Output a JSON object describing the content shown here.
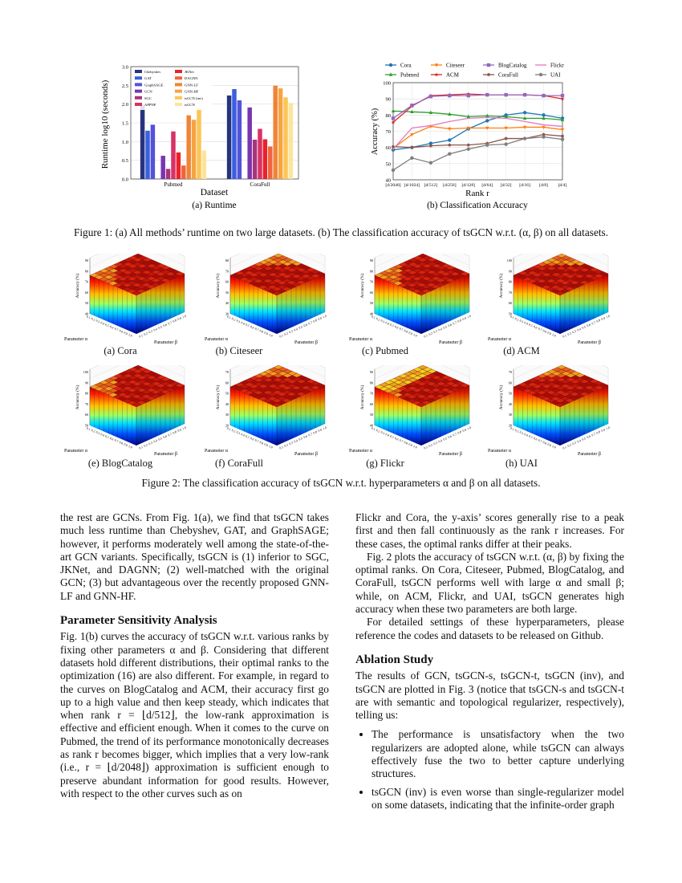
{
  "figure1": {
    "caption": "Figure 1: (a) All methods’ runtime on two large datasets. (b) The classification accuracy of tsGCN w.r.t. (α, β) on all datasets.",
    "runtime_caption": "(a) Runtime",
    "accuracy_caption": "(b) Classification Accuracy"
  },
  "chart_data": [
    {
      "type": "bar",
      "title": "",
      "xlabel": "Dataset",
      "ylabel": "Runtime log10 (seconds)",
      "ylim": [
        0,
        3.0
      ],
      "yticks": [
        "0.0",
        "0.5",
        "1.0",
        "1.5",
        "2.0",
        "2.5",
        "3.0"
      ],
      "categories": [
        "Pubmed",
        "CoraFull"
      ],
      "legend": "top-left",
      "grid": true,
      "series": [
        {
          "name": "Chebyshev",
          "color": "#26347f",
          "values": [
            1.98,
            2.23
          ]
        },
        {
          "name": "GAT",
          "color": "#3b5fe0",
          "values": [
            1.29,
            2.4
          ]
        },
        {
          "name": "GraphSAGE",
          "color": "#5552d8",
          "values": [
            1.45,
            2.1
          ]
        },
        {
          "name": "GCN",
          "color": "#7a35b0",
          "values": [
            0.62,
            1.91
          ]
        },
        {
          "name": "SGC",
          "color": "#a6357c",
          "values": [
            0.27,
            1.05
          ]
        },
        {
          "name": "APPNP",
          "color": "#d93266",
          "values": [
            1.27,
            1.34
          ]
        },
        {
          "name": "JKNet",
          "color": "#ea2228",
          "values": [
            0.71,
            1.06
          ]
        },
        {
          "name": "DAGNN",
          "color": "#ee653c",
          "values": [
            0.36,
            0.87
          ]
        },
        {
          "name": "GNN-LF",
          "color": "#ef8439",
          "values": [
            1.7,
            2.49
          ]
        },
        {
          "name": "GNN-HF",
          "color": "#f6a443",
          "values": [
            1.58,
            2.42
          ]
        },
        {
          "name": "tsGCN (inv)",
          "color": "#fbc656",
          "values": [
            1.89,
            2.18
          ]
        },
        {
          "name": "tsGCN",
          "color": "#fde39c",
          "values": [
            0.76,
            2.03
          ]
        }
      ]
    },
    {
      "type": "line",
      "title": "",
      "xlabel": "Rank r",
      "ylabel": "Accuracy (%)",
      "ylim": [
        40,
        100
      ],
      "yticks": [
        "40",
        "50",
        "60",
        "70",
        "80",
        "90",
        "100"
      ],
      "x": [
        "[d/2048]",
        "[d/1024]",
        "[d/512]",
        "[d/256]",
        "[d/128]",
        "[d/64]",
        "[d/32]",
        "[d/16]",
        "[d/8]",
        "[d/4]"
      ],
      "legend": "top",
      "grid": true,
      "series": [
        {
          "name": "Cora",
          "color": "#1f77b4",
          "marker": "circle",
          "values": [
            58.5,
            60,
            62.5,
            64.5,
            71.5,
            76.5,
            80,
            81.5,
            80,
            78
          ]
        },
        {
          "name": "Citeseer",
          "color": "#ff7f0e",
          "marker": "triangle-down",
          "values": [
            59.5,
            68,
            73,
            71.5,
            72,
            72,
            72,
            72.5,
            72.5,
            71
          ]
        },
        {
          "name": "Pubmed",
          "color": "#2ca02c",
          "marker": "triangle-up",
          "values": [
            82.5,
            82,
            81.5,
            80.5,
            79,
            79.5,
            79,
            78,
            78,
            77
          ]
        },
        {
          "name": "ACM",
          "color": "#d62728",
          "marker": "star",
          "values": [
            75.5,
            85.5,
            92,
            92.5,
            93,
            92.5,
            92.5,
            92.5,
            92,
            90
          ]
        },
        {
          "name": "BlogCatalog",
          "color": "#9467bd",
          "marker": "square",
          "values": [
            78,
            86,
            91.5,
            92,
            92,
            92.5,
            92.5,
            92.5,
            92,
            92
          ]
        },
        {
          "name": "CoraFull",
          "color": "#8c564b",
          "marker": "pentagon",
          "values": [
            60.5,
            60,
            61,
            61.5,
            61.5,
            62.5,
            65.5,
            65.5,
            68,
            67
          ]
        },
        {
          "name": "Flickr",
          "color": "#e377c2",
          "marker": "none",
          "values": [
            59,
            72,
            73.5,
            76,
            78,
            78.5,
            78,
            76,
            74,
            73
          ]
        },
        {
          "name": "UAI",
          "color": "#7f7f7f",
          "marker": "circle",
          "values": [
            46,
            53.5,
            50.5,
            56,
            59,
            61.5,
            62,
            65.5,
            66.5,
            65
          ]
        }
      ]
    }
  ],
  "figure2": {
    "caption": "Figure 2: The classification accuracy of tsGCN w.r.t. hyperparameters α and β on all datasets.",
    "zlabel": "Accuracy (%)",
    "alpha_label": "Parameter α",
    "beta_label": "Parameter β",
    "param_ticks": [
      "0.1",
      "0.2",
      "0.3",
      "0.4",
      "0.5",
      "0.6",
      "0.7",
      "0.8",
      "0.9",
      "1.0"
    ],
    "panels": [
      {
        "caption": "(a) Cora",
        "zticks": [
          "40",
          "50",
          "60",
          "70",
          "80",
          "90"
        ]
      },
      {
        "caption": "(b) Citeseer",
        "zticks": [
          "30",
          "40",
          "50",
          "60",
          "70",
          "80"
        ]
      },
      {
        "caption": "(c) Pubmed",
        "zticks": [
          "40",
          "50",
          "60",
          "70",
          "80",
          "90"
        ]
      },
      {
        "caption": "(d) ACM",
        "zticks": [
          "50",
          "60",
          "70",
          "80",
          "90",
          "100"
        ]
      },
      {
        "caption": "(e) BlogCatalog",
        "zticks": [
          "50",
          "60",
          "70",
          "80",
          "90",
          "100"
        ]
      },
      {
        "caption": "(f) CoraFull",
        "zticks": [
          "20",
          "30",
          "40",
          "50",
          "60",
          "70"
        ]
      },
      {
        "caption": "(g) Flickr",
        "zticks": [
          "40",
          "50",
          "60",
          "70",
          "80",
          "90"
        ]
      },
      {
        "caption": "(h) UAI",
        "zticks": [
          "20",
          "30",
          "40",
          "50",
          "60",
          "70"
        ]
      }
    ]
  },
  "left_column": {
    "p1": "the rest are GCNs. From Fig. 1(a), we find that tsGCN takes much less runtime than Chebyshev, GAT, and GraphSAGE; however, it performs moderately well among the state-of-the-art GCN variants. Specifically, tsGCN is (1) inferior to SGC, JKNet, and DAGNN; (2) well-matched with the original GCN; (3) but advantageous over the recently proposed GNN-LF and GNN-HF.",
    "heading": "Parameter Sensitivity Analysis",
    "p2": "Fig. 1(b) curves the accuracy of tsGCN w.r.t. various ranks by fixing other parameters α and β. Considering that different datasets hold different distributions, their optimal ranks to the optimization (16) are also different. For example, in regard to the curves on BlogCatalog and ACM, their accuracy first go up to a high value and then keep steady, which indicates that when rank r = ⌊d/512⌋, the low-rank approximation is effective and efficient enough. When it comes to the curve on Pubmed, the trend of its performance monotonically decreases as rank r becomes bigger, which implies that a very low-rank (i.e., r = ⌊d/2048⌋) approximation is sufficient enough to preserve abundant information for good results. However, with respect to the other curves such as on"
  },
  "right_column": {
    "p1": "Flickr and Cora, the y-axis’ scores generally rise to a peak first and then fall continuously as the rank r increases. For these cases, the optimal ranks differ at their peaks.",
    "p2": "Fig. 2 plots the accuracy of tsGCN w.r.t. (α, β) by fixing the optimal ranks. On Cora, Citeseer, Pubmed, BlogCatalog, and CoraFull, tsGCN performs well with large α and small β; while, on ACM, Flickr, and UAI, tsGCN generates high accuracy when these two parameters are both large.",
    "p3": "For detailed settings of these hyperparameters, please reference the codes and datasets to be released on Github.",
    "heading": "Ablation Study",
    "p4": "The results of GCN, tsGCN-s, tsGCN-t, tsGCN (inv), and tsGCN are plotted in Fig. 3 (notice that tsGCN-s and tsGCN-t are with semantic and topological regularizer, respectively), telling us:",
    "bullets": [
      "The performance is unsatisfactory when the two regularizers are adopted alone, while tsGCN can always effectively fuse the two to better capture underlying structures.",
      "tsGCN (inv) is even worse than single-regularizer model on some datasets, indicating that the infinite-order graph"
    ]
  }
}
